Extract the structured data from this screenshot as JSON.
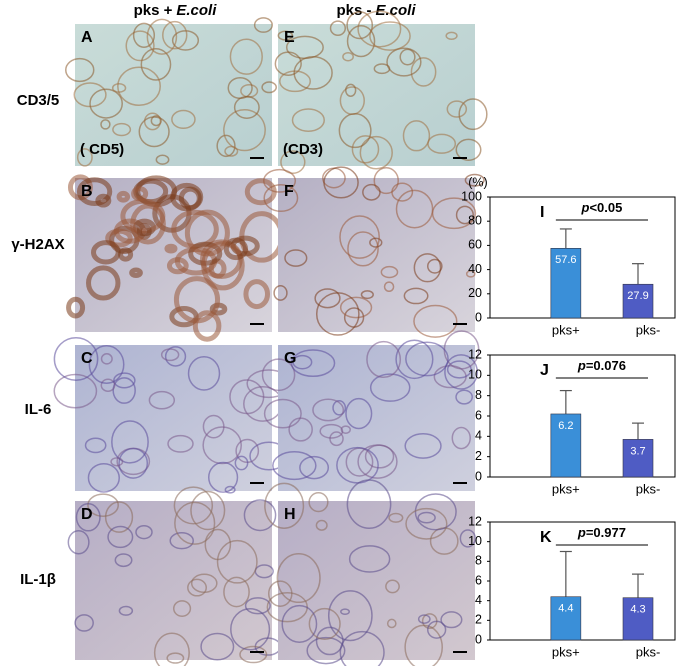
{
  "figure": {
    "columns": [
      {
        "label": "pks +",
        "italic": "E.coli"
      },
      {
        "label": "pks -",
        "italic": "E.coli"
      }
    ],
    "rows": [
      "CD3/5",
      "γ-H2AX",
      "IL-6",
      "IL-1β"
    ],
    "panels": [
      [
        {
          "letter": "A",
          "note": "( CD5)"
        },
        {
          "letter": "E",
          "note": "(CD3)"
        }
      ],
      [
        {
          "letter": "B"
        },
        {
          "letter": "F"
        }
      ],
      [
        {
          "letter": "C"
        },
        {
          "letter": "G"
        }
      ],
      [
        {
          "letter": "D"
        },
        {
          "letter": "H"
        }
      ]
    ]
  },
  "chart_data": [
    {
      "type": "bar",
      "title": "I",
      "ylabel": "(%)",
      "categories": [
        "pks+",
        "pks-"
      ],
      "values": [
        57.6,
        27.9
      ],
      "errors": [
        16,
        17
      ],
      "colors": [
        "#3a8fd8",
        "#4f5cc4"
      ],
      "ylim": [
        0,
        100
      ],
      "yticks": [
        0,
        20,
        40,
        60,
        80,
        100
      ],
      "annotation": {
        "symbol": "p",
        "text": "<0.05"
      }
    },
    {
      "type": "bar",
      "title": "J",
      "categories": [
        "pks+",
        "pks-"
      ],
      "values": [
        6.2,
        3.7
      ],
      "errors": [
        2.3,
        1.6
      ],
      "colors": [
        "#3a8fd8",
        "#4f5cc4"
      ],
      "ylim": [
        0,
        12
      ],
      "yticks": [
        0,
        2,
        4,
        6,
        8,
        10,
        12
      ],
      "annotation": {
        "symbol": "p",
        "text": "=0.076"
      }
    },
    {
      "type": "bar",
      "title": "K",
      "categories": [
        "pks+",
        "pks-"
      ],
      "values": [
        4.4,
        4.3
      ],
      "errors": [
        4.6,
        2.4
      ],
      "colors": [
        "#3a8fd8",
        "#4f5cc4"
      ],
      "ylim": [
        0,
        12
      ],
      "yticks": [
        0,
        2,
        4,
        6,
        8,
        10,
        12
      ],
      "annotation": {
        "symbol": "p",
        "text": "=0.977"
      }
    }
  ]
}
